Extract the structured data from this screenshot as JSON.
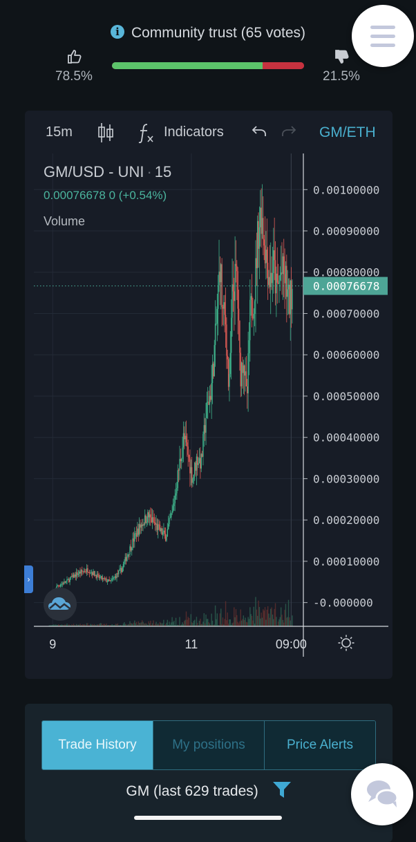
{
  "trust": {
    "title": "Community trust (65 votes)",
    "up_pct": "78.5%",
    "down_pct": "21.5%",
    "up_fraction": 0.785,
    "colors": {
      "up": "#5cc46a",
      "down": "#c6323f"
    }
  },
  "toolbar": {
    "interval": "15m",
    "candles_icon": "candlestick-icon",
    "fx_icon": "fx-icon",
    "indicators_label": "Indicators",
    "undo_icon": "undo-icon",
    "redo_icon": "redo-icon",
    "pair": "GM/ETH"
  },
  "legend": {
    "symbol": "GM/USD - UNI",
    "interval": "15",
    "price": "0.00076678",
    "change": "0 (+0.54%)",
    "volume_label": "Volume"
  },
  "price_tag": "0.00076678",
  "chart_data": {
    "type": "candlestick",
    "title": "GM/USD - UNI · 15",
    "y_ticks": [
      "0.00100000",
      "0.00090000",
      "0.00080000",
      "0.00070000",
      "0.00060000",
      "0.00050000",
      "0.00040000",
      "0.00030000",
      "0.00020000",
      "0.00010000",
      "-0.000000"
    ],
    "y_tick_values": [
      0.001,
      0.0009,
      0.0008,
      0.0007,
      0.0006,
      0.0005,
      0.0004,
      0.0003,
      0.0002,
      0.0001,
      0
    ],
    "x_ticks": [
      "9",
      "11",
      "09:00"
    ],
    "x_tick_positions": [
      0.2,
      6.45,
      10.95
    ],
    "ylim": [
      -5.75e-05,
      0.0010875
    ],
    "xlim": [
      -0.65,
      11.5
    ],
    "last_price": 0.00076678,
    "price_path": [
      [
        0,
        5e-06
      ],
      [
        0.4,
        4e-05
      ],
      [
        0.8,
        5e-05
      ],
      [
        1.3,
        7e-05
      ],
      [
        1.8,
        8e-05
      ],
      [
        2.3,
        6e-05
      ],
      [
        2.8,
        5e-05
      ],
      [
        3.3,
        8e-05
      ],
      [
        3.6,
        0.00012
      ],
      [
        3.9,
        0.00016
      ],
      [
        4.2,
        0.00019
      ],
      [
        4.5,
        0.00021
      ],
      [
        4.8,
        0.00019
      ],
      [
        5.1,
        0.00017
      ],
      [
        5.3,
        0.00016
      ],
      [
        5.6,
        0.00022
      ],
      [
        5.9,
        0.00033
      ],
      [
        6.1,
        0.0004
      ],
      [
        6.3,
        0.00036
      ],
      [
        6.5,
        0.0003
      ],
      [
        6.7,
        0.00035
      ],
      [
        6.9,
        0.00034
      ],
      [
        7.1,
        0.00045
      ],
      [
        7.35,
        0.00052
      ],
      [
        7.55,
        0.00065
      ],
      [
        7.75,
        0.00083
      ],
      [
        7.85,
        0.0007
      ],
      [
        8.0,
        0.00068
      ],
      [
        8.15,
        0.0005
      ],
      [
        8.3,
        0.00075
      ],
      [
        8.5,
        0.0008
      ],
      [
        8.65,
        0.00055
      ],
      [
        8.8,
        0.0006
      ],
      [
        8.95,
        0.00048
      ],
      [
        9.1,
        0.0007
      ],
      [
        9.3,
        0.00075
      ],
      [
        9.45,
        0.0009
      ],
      [
        9.6,
        0.00095
      ],
      [
        9.8,
        0.00085
      ],
      [
        10.0,
        0.00078
      ],
      [
        10.15,
        0.00082
      ],
      [
        10.3,
        0.00075
      ],
      [
        10.5,
        0.0008
      ],
      [
        10.7,
        0.00078
      ],
      [
        10.85,
        0.00072
      ],
      [
        11.0,
        0.00076678
      ]
    ],
    "colors": {
      "up": "#3fb48c",
      "down": "#e35d56",
      "price_line": "#4bb59e"
    }
  },
  "chart_controls": {
    "side_tab_icon": "chevron-right-icon",
    "logo_icon": "cloud-chart-icon",
    "settings_icon": "sun-settings-icon"
  },
  "tabs": [
    {
      "label": "Trade History",
      "active": true
    },
    {
      "label": "My positions",
      "active": false
    },
    {
      "label": "Price Alerts",
      "active": false
    }
  ],
  "trades": {
    "label": "GM (last 629 trades)",
    "filter_icon": "filter-icon"
  },
  "fabs": {
    "menu_icon": "hamburger-menu-icon",
    "chat_icon": "chat-bubbles-icon"
  }
}
